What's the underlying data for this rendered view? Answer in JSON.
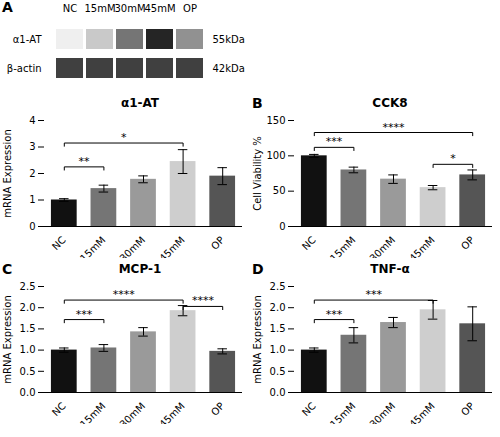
{
  "chart_data": [
    {
      "type": "heatmap",
      "panel_label": "A",
      "x": [
        "NC",
        "15mM",
        "30mM",
        "45mM",
        "OP"
      ],
      "y": [
        "α1-AT",
        "β-actin"
      ],
      "cells": [
        [
          0.12,
          0.32,
          0.62,
          0.88,
          0.52
        ],
        [
          0.8,
          0.8,
          0.8,
          0.8,
          0.8
        ]
      ],
      "annotations": [
        {
          "y": "α1-AT",
          "label": "55kDa"
        },
        {
          "y": "β-actin",
          "label": "42kDa"
        }
      ]
    },
    {
      "type": "bar",
      "title": "α1-AT",
      "ylabel": "mRNA Expression",
      "categories": [
        "NC",
        "15mM",
        "30mM",
        "45mM",
        "OP"
      ],
      "values": [
        1.0,
        1.43,
        1.78,
        2.45,
        1.9
      ],
      "errors": [
        0.05,
        0.13,
        0.13,
        0.45,
        0.32
      ],
      "colors": [
        "#111111",
        "#757575",
        "#9a9a9a",
        "#cecece",
        "#555555"
      ],
      "ylim": [
        0,
        4
      ],
      "yticks": [
        0,
        1,
        2,
        3,
        4
      ],
      "annotations": [
        {
          "from": "NC",
          "to": "15mM",
          "y": 2.25,
          "label": "**"
        },
        {
          "from": "NC",
          "to": "45mM",
          "y": 3.15,
          "label": "*"
        }
      ]
    },
    {
      "type": "bar",
      "panel_label": "B",
      "title": "CCK8",
      "ylabel": "Cell Viability %",
      "categories": [
        "NC",
        "15mM",
        "30mM",
        "45mM",
        "OP"
      ],
      "values": [
        100,
        80,
        67,
        55,
        73
      ],
      "errors": [
        2,
        4,
        6,
        3,
        7
      ],
      "colors": [
        "#111111",
        "#757575",
        "#9a9a9a",
        "#cecece",
        "#555555"
      ],
      "ylim": [
        0,
        150
      ],
      "yticks": [
        0,
        50,
        100,
        150
      ],
      "annotations": [
        {
          "from": "NC",
          "to": "15mM",
          "y": 112,
          "label": "***"
        },
        {
          "from": "NC",
          "to": "OP",
          "y": 133,
          "label": "****"
        },
        {
          "from": "45mM",
          "to": "OP",
          "y": 88,
          "label": "*"
        }
      ]
    },
    {
      "type": "bar",
      "panel_label": "C",
      "title": "MCP-1",
      "ylabel": "mRNA Expression",
      "categories": [
        "NC",
        "15mM",
        "30mM",
        "45mM",
        "OP"
      ],
      "values": [
        1.0,
        1.05,
        1.43,
        1.93,
        0.97
      ],
      "errors": [
        0.05,
        0.08,
        0.1,
        0.12,
        0.06
      ],
      "colors": [
        "#111111",
        "#757575",
        "#9a9a9a",
        "#cecece",
        "#555555"
      ],
      "ylim": [
        0,
        2.5
      ],
      "yticks": [
        {
          "value": 0,
          "label": "0.0"
        },
        0.5,
        {
          "value": 1,
          "label": "1.0"
        },
        1.5,
        {
          "value": 2,
          "label": "2.0"
        },
        2.5
      ],
      "annotations": [
        {
          "from": "NC",
          "to": "15mM",
          "y": 1.72,
          "label": "***"
        },
        {
          "from": "NC",
          "to": "45mM",
          "y": 2.18,
          "label": "****"
        },
        {
          "from": "45mM",
          "to": "OP",
          "y": 2.03,
          "label": "****"
        }
      ]
    },
    {
      "type": "bar",
      "panel_label": "D",
      "title": "TNF-α",
      "ylabel": "mRNA Expression",
      "categories": [
        "NC",
        "15mM",
        "30mM",
        "45mM",
        "OP"
      ],
      "values": [
        1.0,
        1.35,
        1.65,
        1.95,
        1.62
      ],
      "errors": [
        0.05,
        0.18,
        0.12,
        0.22,
        0.4
      ],
      "colors": [
        "#111111",
        "#757575",
        "#9a9a9a",
        "#cecece",
        "#555555"
      ],
      "ylim": [
        0,
        2.5
      ],
      "yticks": [
        {
          "value": 0,
          "label": "0.0"
        },
        0.5,
        {
          "value": 1,
          "label": "1.0"
        },
        1.5,
        {
          "value": 2,
          "label": "2.0"
        },
        2.5
      ],
      "annotations": [
        {
          "from": "NC",
          "to": "15mM",
          "y": 1.72,
          "label": "***"
        },
        {
          "from": "NC",
          "to": "45mM",
          "y": 2.18,
          "label": "***"
        }
      ]
    }
  ]
}
